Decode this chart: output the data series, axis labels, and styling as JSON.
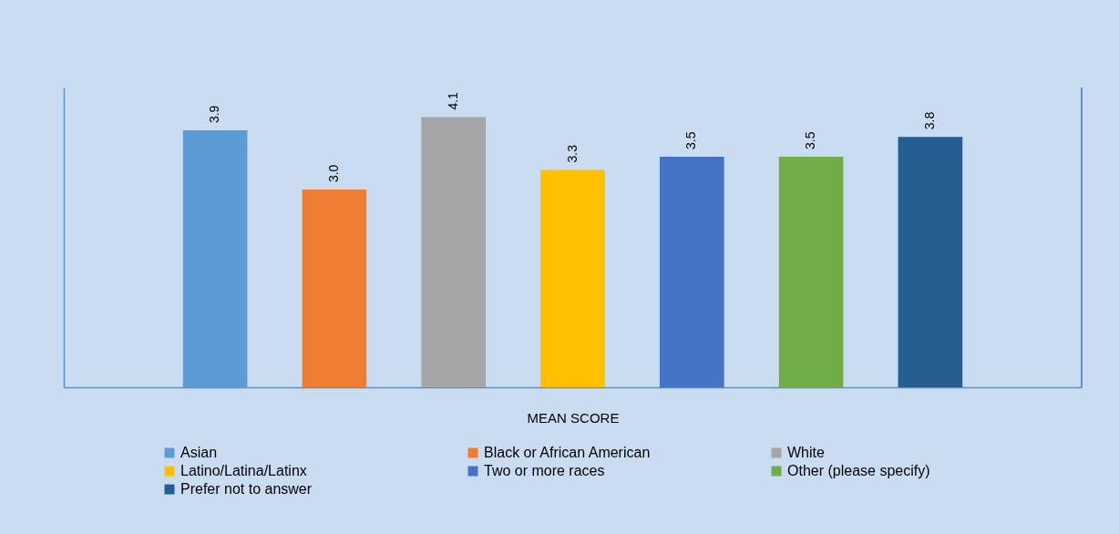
{
  "chart_data": {
    "type": "bar",
    "xlabel": "MEAN SCORE",
    "categories": [
      null,
      null,
      null,
      null,
      null,
      null,
      null
    ],
    "stacked": true,
    "series": [
      {
        "name": "Asian",
        "color": "#5b9bd5",
        "values": [
          3.9,
          null,
          null,
          null,
          null,
          null,
          null
        ],
        "value_labels": [
          "3.9",
          null,
          null,
          null,
          null,
          null,
          null
        ]
      },
      {
        "name": "Black or African American",
        "color": "#ed7d31",
        "values": [
          null,
          3.0,
          null,
          null,
          null,
          null,
          null
        ],
        "value_labels": [
          null,
          "3.0",
          null,
          null,
          null,
          null,
          null
        ]
      },
      {
        "name": "White",
        "color": "#a5a5a5",
        "values": [
          null,
          null,
          4.1,
          null,
          null,
          null,
          null
        ],
        "value_labels": [
          null,
          null,
          "4.1",
          null,
          null,
          null,
          null
        ]
      },
      {
        "name": "Latino/Latina/Latinx",
        "color": "#ffc000",
        "values": [
          null,
          null,
          null,
          3.3,
          null,
          null,
          null
        ],
        "value_labels": [
          null,
          null,
          null,
          "3.3",
          null,
          null,
          null
        ]
      },
      {
        "name": "Two or more races",
        "color": "#4472c4",
        "values": [
          null,
          null,
          null,
          null,
          3.5,
          null,
          null
        ],
        "value_labels": [
          null,
          null,
          null,
          null,
          "3.5",
          null,
          null
        ]
      },
      {
        "name": "Other (please specify)",
        "color": "#70ad47",
        "values": [
          null,
          null,
          null,
          null,
          null,
          3.5,
          null
        ],
        "value_labels": [
          null,
          null,
          null,
          null,
          null,
          "3.5",
          null
        ]
      },
      {
        "name": "Prefer not to answer",
        "color": "#255e91",
        "values": [
          null,
          null,
          null,
          null,
          null,
          null,
          3.8
        ],
        "value_labels": [
          null,
          null,
          null,
          null,
          null,
          null,
          "3.8"
        ]
      }
    ],
    "legend": "bottom",
    "grid": false
  }
}
